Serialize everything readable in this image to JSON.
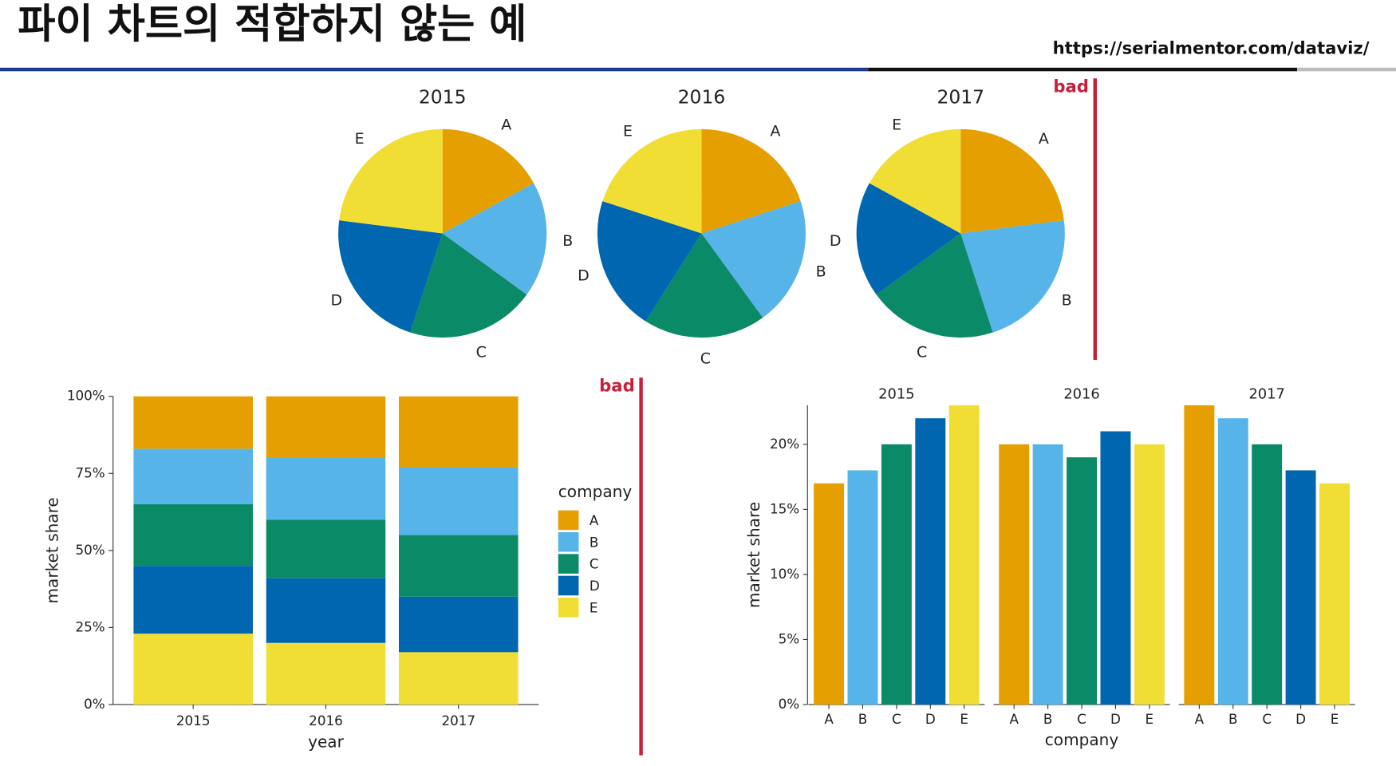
{
  "title": "파이 차트의 적합하지 않는 예",
  "source": "https://serialmentor.com/dataviz/",
  "chart_data": [
    {
      "type": "pie",
      "annotation": "bad",
      "categories": [
        "A",
        "B",
        "C",
        "D",
        "E"
      ],
      "colors": [
        "#E69F00",
        "#56B4E9",
        "#0B8A68",
        "#0066B0",
        "#F0DE34"
      ],
      "series": [
        {
          "name": "2015",
          "values": [
            17,
            18,
            20,
            22,
            23
          ]
        },
        {
          "name": "2016",
          "values": [
            20,
            20,
            19,
            21,
            20
          ]
        },
        {
          "name": "2017",
          "values": [
            23,
            22,
            20,
            18,
            17
          ]
        }
      ]
    },
    {
      "type": "stacked_bar",
      "annotation": "bad",
      "xlabel": "year",
      "ylabel": "market share",
      "legend_title": "company",
      "categories": [
        "2015",
        "2016",
        "2017"
      ],
      "series": [
        {
          "name": "A",
          "color": "#E69F00",
          "values": [
            17,
            20,
            23
          ]
        },
        {
          "name": "B",
          "color": "#56B4E9",
          "values": [
            18,
            20,
            22
          ]
        },
        {
          "name": "C",
          "color": "#0B8A68",
          "values": [
            20,
            19,
            20
          ]
        },
        {
          "name": "D",
          "color": "#0066B0",
          "values": [
            22,
            21,
            18
          ]
        },
        {
          "name": "E",
          "color": "#F0DE34",
          "values": [
            23,
            20,
            17
          ]
        }
      ],
      "ylim": [
        0,
        100
      ],
      "yticks": [
        {
          "value": 0,
          "label": "0%"
        },
        {
          "value": 25,
          "label": "25%"
        },
        {
          "value": 50,
          "label": "50%"
        },
        {
          "value": 75,
          "label": "75%"
        },
        {
          "value": 100,
          "label": "100%"
        }
      ]
    },
    {
      "type": "faceted_bar",
      "xlabel": "company",
      "ylabel": "market share",
      "categories": [
        "A",
        "B",
        "C",
        "D",
        "E"
      ],
      "colors": [
        "#E69F00",
        "#56B4E9",
        "#0B8A68",
        "#0066B0",
        "#F0DE34"
      ],
      "facets": [
        {
          "name": "2015",
          "values": [
            17,
            18,
            20,
            22,
            23
          ]
        },
        {
          "name": "2016",
          "values": [
            20,
            20,
            19,
            21,
            20
          ]
        },
        {
          "name": "2017",
          "values": [
            23,
            22,
            20,
            18,
            17
          ]
        }
      ],
      "ylim": [
        0,
        23
      ],
      "yticks": [
        {
          "value": 0,
          "label": "0%"
        },
        {
          "value": 5,
          "label": "5%"
        },
        {
          "value": 10,
          "label": "10%"
        },
        {
          "value": 15,
          "label": "15%"
        },
        {
          "value": 20,
          "label": "20%"
        }
      ]
    }
  ]
}
